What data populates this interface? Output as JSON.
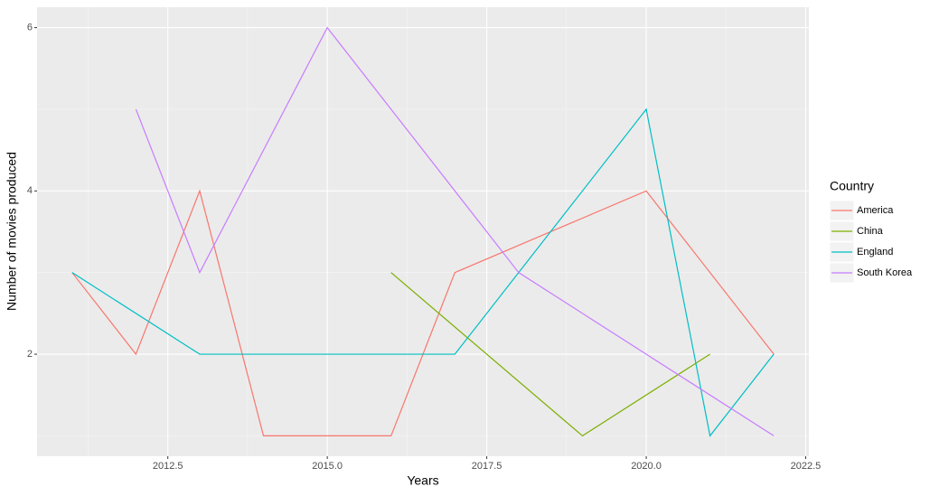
{
  "chart_data": {
    "type": "line",
    "x_label": "Years",
    "y_label": "Number of movies produced",
    "legend_title": "Country",
    "legend_position": "right",
    "xlim": [
      2010.45,
      2022.55
    ],
    "ylim": [
      0.75,
      6.25
    ],
    "xticks": [
      2012.5,
      {
        "value": 2015,
        "label": "2015.0"
      },
      2017.5,
      {
        "value": 2020,
        "label": "2020.0"
      },
      2022.5
    ],
    "yticks": [
      2,
      4,
      6
    ],
    "grid": true,
    "series": [
      {
        "name": "America",
        "color": "#F8766D",
        "x": [
          2011,
          2012,
          2013,
          2014,
          2016,
          2017,
          2020,
          2022
        ],
        "values": [
          3,
          2,
          4,
          1,
          1,
          3,
          4,
          2
        ]
      },
      {
        "name": "China",
        "color": "#7CAE00",
        "x": [
          2016,
          2019,
          2021
        ],
        "values": [
          3,
          1,
          2
        ]
      },
      {
        "name": "England",
        "color": "#00BFC4",
        "x": [
          2011,
          2013,
          2017,
          2020,
          2021,
          2022
        ],
        "values": [
          3,
          2,
          2,
          5,
          1,
          2
        ]
      },
      {
        "name": "South Korea",
        "color": "#C77CFF",
        "x": [
          2012,
          2013,
          2015,
          2018,
          2022
        ],
        "values": [
          5,
          3,
          6,
          3,
          1
        ]
      }
    ]
  }
}
